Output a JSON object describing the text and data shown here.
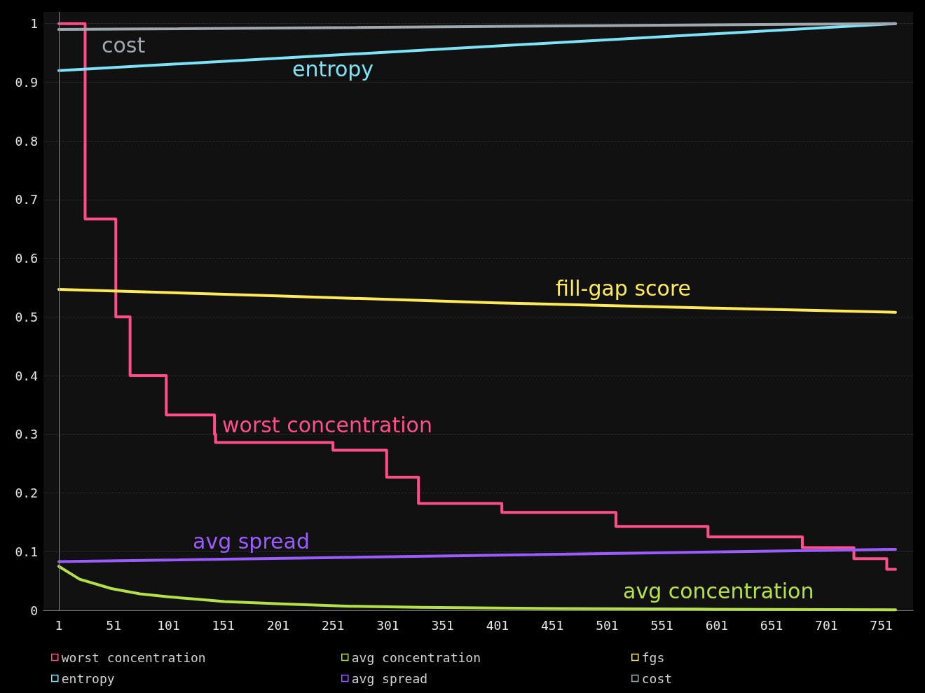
{
  "chart_data": {
    "type": "line",
    "xlim": [
      -13,
      780
    ],
    "ylim": [
      0,
      1.02
    ],
    "xticks": [
      1,
      51,
      101,
      151,
      201,
      251,
      301,
      351,
      401,
      451,
      501,
      551,
      601,
      651,
      701,
      751
    ],
    "yticks": [
      0,
      0.1,
      0.2,
      0.3,
      0.4,
      0.5,
      0.6,
      0.7,
      0.8,
      0.9,
      1
    ],
    "grid": "y",
    "legend": "bottom",
    "marker": "none",
    "line_style": "solid",
    "ref_lines": [
      {
        "axis": "x",
        "value": 1,
        "color": "#8a8a8a"
      }
    ],
    "annotations": [
      "cost",
      "entropy",
      "fill-gap score",
      "worst concentration",
      "avg spread",
      "avg concentration"
    ],
    "series": [
      {
        "name": "worst concentration",
        "type": "step",
        "color": "#ff4f8b",
        "x": [
          1,
          25,
          53,
          66,
          99,
          143,
          144,
          251,
          300,
          329,
          405,
          509,
          593,
          679,
          726,
          756,
          764
        ],
        "values": [
          1,
          0.667,
          0.5,
          0.4,
          0.333,
          0.3,
          0.286,
          0.273,
          0.227,
          0.182,
          0.167,
          0.143,
          0.125,
          0.107,
          0.088,
          0.07,
          0.07
        ]
      },
      {
        "name": "avg concentration",
        "color": "#b5e04a",
        "x": [
          1,
          20,
          49,
          75,
          101,
          126,
          152,
          203,
          267,
          331,
          458,
          586,
          764
        ],
        "values": [
          0.075,
          0.053,
          0.037,
          0.028,
          0.023,
          0.019,
          0.015,
          0.011,
          0.007,
          0.005,
          0.003,
          0.002,
          0.001
        ]
      },
      {
        "name": "fgs",
        "color": "#ffeb5a",
        "x": [
          1,
          200,
          400,
          600,
          764
        ],
        "values": [
          0.547,
          0.536,
          0.524,
          0.515,
          0.508
        ]
      },
      {
        "name": "entropy",
        "color": "#7fe3f7",
        "x": [
          1,
          764
        ],
        "values": [
          0.92,
          1
        ]
      },
      {
        "name": "avg spread",
        "color": "#9b5cff",
        "x": [
          1,
          764
        ],
        "values": [
          0.083,
          0.104
        ]
      },
      {
        "name": "cost",
        "color": "#a0a8ad",
        "x": [
          1,
          764
        ],
        "values": [
          0.99,
          1
        ]
      }
    ]
  }
}
